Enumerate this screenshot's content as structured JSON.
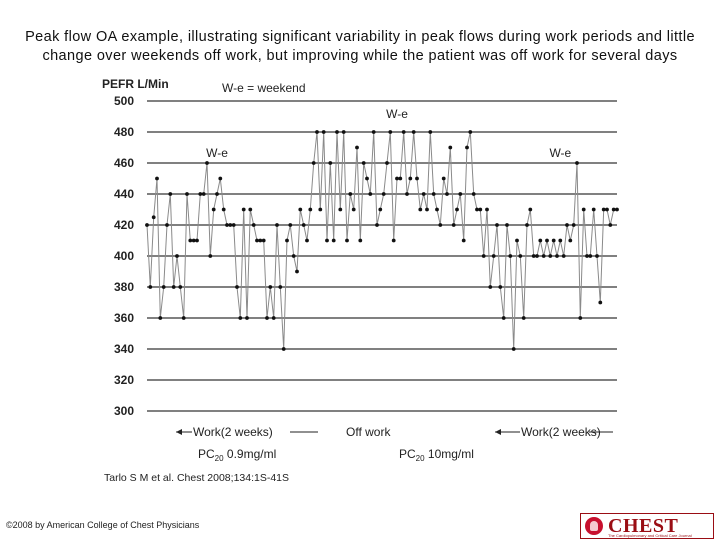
{
  "slide": {
    "title": "Peak flow OA example, illustrating significant variability in peak flows during work periods and little change over weekends off work, but improving while the patient was off work for several days",
    "citation": "Tarlo S M et al. Chest 2008;134:1S-41S",
    "copyright": "©2008 by American College of Chest Physicians",
    "logo_text": "CHEST",
    "logo_tagline": "The Cardiopulmonary and Critical Care Journal",
    "brand_color": "#9a0d14"
  },
  "chart_data": {
    "type": "line",
    "ylabel": "PEFR L/Min",
    "legend_note": "W-e = weekend",
    "ylim": [
      300,
      500
    ],
    "yticks": [
      300,
      320,
      340,
      360,
      380,
      400,
      420,
      440,
      460,
      480,
      500
    ],
    "grid": "horizontal gridlines",
    "line_color": "#8a8a8a",
    "marker_color": "#111111",
    "series": [
      {
        "values": [
          420,
          380,
          425,
          450,
          360,
          380,
          420,
          440,
          380,
          400,
          380,
          360,
          440,
          410,
          410,
          410,
          440,
          440,
          460,
          400,
          430,
          440,
          450,
          430,
          420,
          420,
          420,
          380,
          360,
          430,
          360,
          430,
          420,
          410,
          410,
          410,
          360,
          380,
          360,
          420,
          380,
          340,
          410,
          420,
          400,
          390,
          430,
          420,
          410,
          430,
          460,
          480,
          430,
          480,
          410,
          460,
          410,
          480,
          430,
          480,
          410,
          440,
          430,
          470,
          410,
          460,
          450,
          440,
          480,
          420,
          430,
          440,
          460,
          480,
          410,
          450,
          450,
          480,
          440,
          450,
          480,
          450,
          430,
          440,
          430,
          480,
          440,
          430,
          420,
          450,
          440,
          470,
          420,
          430,
          440,
          410,
          470,
          480,
          440,
          430,
          430,
          400,
          430,
          380,
          400,
          420,
          380,
          360,
          420,
          400,
          340,
          410,
          400,
          360,
          420,
          430,
          400,
          400,
          410,
          400,
          410,
          400,
          410,
          400,
          410,
          400,
          420,
          410,
          420,
          460,
          360,
          430,
          400,
          400,
          430,
          400,
          370,
          430,
          430,
          420,
          430,
          430
        ]
      }
    ],
    "annotations": [
      {
        "label": "W-e",
        "x_index": 21,
        "y": 464
      },
      {
        "label": "W-e",
        "x_index": 75,
        "y": 489
      },
      {
        "label": "W-e",
        "x_index": 124,
        "y": 464
      }
    ],
    "periods": [
      {
        "label": "Work(2 weeks)",
        "arrow": "left"
      },
      {
        "label": "Off work",
        "arrow": "none"
      },
      {
        "label": "Work(2 weeks)",
        "arrow": "left"
      }
    ],
    "dose_labels": [
      {
        "prefix": "PC",
        "sub": "20",
        "value": "0.9mg/ml"
      },
      {
        "prefix": "PC",
        "sub": "20",
        "value": "10mg/ml"
      }
    ]
  }
}
